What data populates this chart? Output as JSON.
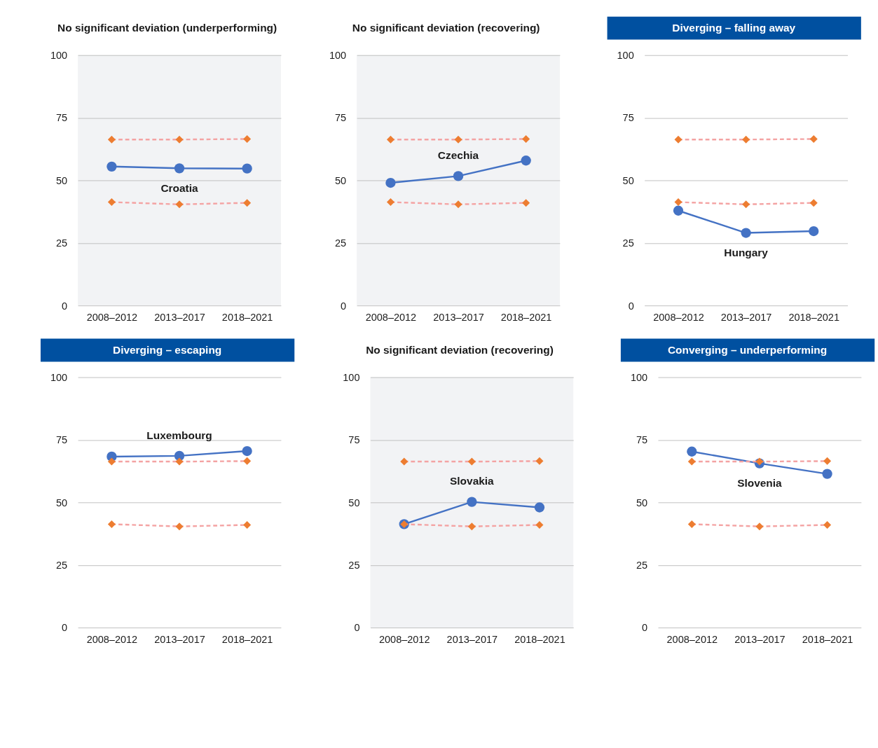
{
  "chart_data": [
    {
      "type": "line",
      "title": "No significant deviation (underperforming)",
      "categories": [
        "2008–2012",
        "2013–2017",
        "2018–2021"
      ],
      "ylim": [
        0,
        100
      ],
      "yticks": [
        0,
        25,
        50,
        75,
        100
      ],
      "grid": "y",
      "series": [
        {
          "name": "Croatia",
          "color": "#4472c4",
          "values": [
            55.5,
            54.8,
            54.7
          ],
          "marker": "circle",
          "line_style": "solid"
        },
        {
          "color": "#ed7d31",
          "values": [
            66.3,
            66.3,
            66.5
          ],
          "marker": "diamond",
          "line_style": "dashed"
        },
        {
          "color": "#ed7d31",
          "values": [
            41.3,
            40.4,
            41.0
          ],
          "marker": "diamond",
          "line_style": "dashed"
        }
      ]
    },
    {
      "type": "line",
      "title": "No significant deviation (recovering)",
      "categories": [
        "2008–2012",
        "2013–2017",
        "2018–2021"
      ],
      "ylim": [
        0,
        100
      ],
      "yticks": [
        0,
        25,
        50,
        75,
        100
      ],
      "grid": "y",
      "series": [
        {
          "name": "Czechia",
          "color": "#4472c4",
          "values": [
            49.0,
            51.7,
            57.9
          ],
          "marker": "circle",
          "line_style": "solid"
        },
        {
          "color": "#ed7d31",
          "values": [
            66.3,
            66.3,
            66.5
          ],
          "marker": "diamond",
          "line_style": "dashed"
        },
        {
          "color": "#ed7d31",
          "values": [
            41.3,
            40.4,
            41.0
          ],
          "marker": "diamond",
          "line_style": "dashed"
        }
      ]
    },
    {
      "type": "line",
      "title": "Diverging – falling away",
      "categories": [
        "2008–2012",
        "2013–2017",
        "2018–2021"
      ],
      "ylim": [
        0,
        100
      ],
      "yticks": [
        0,
        25,
        50,
        75,
        100
      ],
      "grid": "y",
      "series": [
        {
          "name": "Hungary",
          "color": "#4472c4",
          "values": [
            37.9,
            29.0,
            29.7
          ],
          "marker": "circle",
          "line_style": "solid"
        },
        {
          "color": "#ed7d31",
          "values": [
            66.3,
            66.3,
            66.5
          ],
          "marker": "diamond",
          "line_style": "dashed"
        },
        {
          "color": "#ed7d31",
          "values": [
            41.3,
            40.4,
            41.0
          ],
          "marker": "diamond",
          "line_style": "dashed"
        }
      ]
    },
    {
      "type": "line",
      "title": "Diverging – escaping",
      "categories": [
        "2008–2012",
        "2013–2017",
        "2018–2021"
      ],
      "ylim": [
        0,
        100
      ],
      "yticks": [
        0,
        25,
        50,
        75,
        100
      ],
      "grid": "y",
      "series": [
        {
          "name": "Luxembourg",
          "color": "#4472c4",
          "values": [
            68.3,
            68.6,
            70.5
          ],
          "marker": "circle",
          "line_style": "solid"
        },
        {
          "color": "#ed7d31",
          "values": [
            66.3,
            66.3,
            66.5
          ],
          "marker": "diamond",
          "line_style": "dashed"
        },
        {
          "color": "#ed7d31",
          "values": [
            41.3,
            40.4,
            41.0
          ],
          "marker": "diamond",
          "line_style": "dashed"
        }
      ]
    },
    {
      "type": "line",
      "title": "No significant deviation (recovering)",
      "categories": [
        "2008–2012",
        "2013–2017",
        "2018–2021"
      ],
      "ylim": [
        0,
        100
      ],
      "yticks": [
        0,
        25,
        50,
        75,
        100
      ],
      "grid": "y",
      "series": [
        {
          "name": "Slovakia",
          "color": "#4472c4",
          "values": [
            41.3,
            50.2,
            48.0
          ],
          "marker": "circle",
          "line_style": "solid"
        },
        {
          "color": "#ed7d31",
          "values": [
            66.3,
            66.3,
            66.5
          ],
          "marker": "diamond",
          "line_style": "dashed"
        },
        {
          "color": "#ed7d31",
          "values": [
            41.3,
            40.4,
            41.0
          ],
          "marker": "diamond",
          "line_style": "dashed"
        }
      ]
    },
    {
      "type": "line",
      "title": "Converging – underperforming",
      "categories": [
        "2008–2012",
        "2013–2017",
        "2018–2021"
      ],
      "ylim": [
        0,
        100
      ],
      "yticks": [
        0,
        25,
        50,
        75,
        100
      ],
      "grid": "y",
      "series": [
        {
          "name": "Slovenia",
          "color": "#4472c4",
          "values": [
            70.3,
            65.6,
            61.4
          ],
          "marker": "circle",
          "line_style": "solid"
        },
        {
          "color": "#ed7d31",
          "values": [
            66.3,
            66.3,
            66.5
          ],
          "marker": "diamond",
          "line_style": "dashed"
        },
        {
          "color": "#ed7d31",
          "values": [
            41.3,
            40.4,
            41.0
          ],
          "marker": "diamond",
          "line_style": "dashed"
        }
      ]
    }
  ]
}
